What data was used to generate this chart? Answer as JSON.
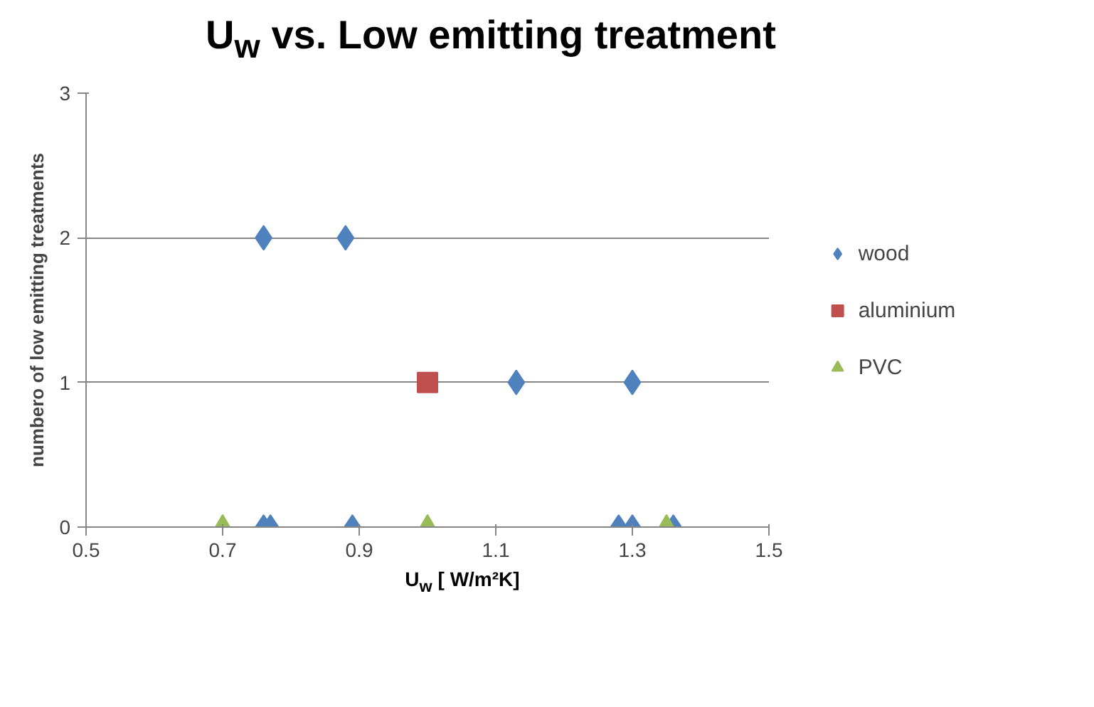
{
  "chart_data": {
    "type": "scatter",
    "title": "U$_{w}$ vs. Low emitting treatment",
    "xlabel": "U$_{w}$ [ W/m²K]",
    "ylabel": "numbero of low emitting treatments",
    "xlim": [
      0.5,
      1.5
    ],
    "xticks": [
      0.5,
      0.7,
      0.9,
      1.1,
      1.3,
      1.5
    ],
    "ylim": [
      0,
      3
    ],
    "yticks": [
      0,
      1,
      2,
      3
    ],
    "grid": "y",
    "legend": "right",
    "series": [
      {
        "name": "wood",
        "color": "#4f81bd",
        "marker": "diamond",
        "x": [
          0.76,
          0.88,
          1.13,
          1.3,
          0.76,
          0.77,
          0.89,
          1.28,
          1.3,
          1.36
        ],
        "values": [
          2,
          2,
          1,
          1,
          0,
          0,
          0,
          0,
          0,
          0
        ]
      },
      {
        "name": "aluminium",
        "color": "#c0504d",
        "marker": "square",
        "x": [
          1.0
        ],
        "values": [
          1
        ]
      },
      {
        "name": "PVC",
        "color": "#9bbb59",
        "marker": "triangle",
        "x": [
          0.7,
          1.0,
          1.35
        ],
        "values": [
          0,
          0,
          0
        ]
      }
    ]
  }
}
